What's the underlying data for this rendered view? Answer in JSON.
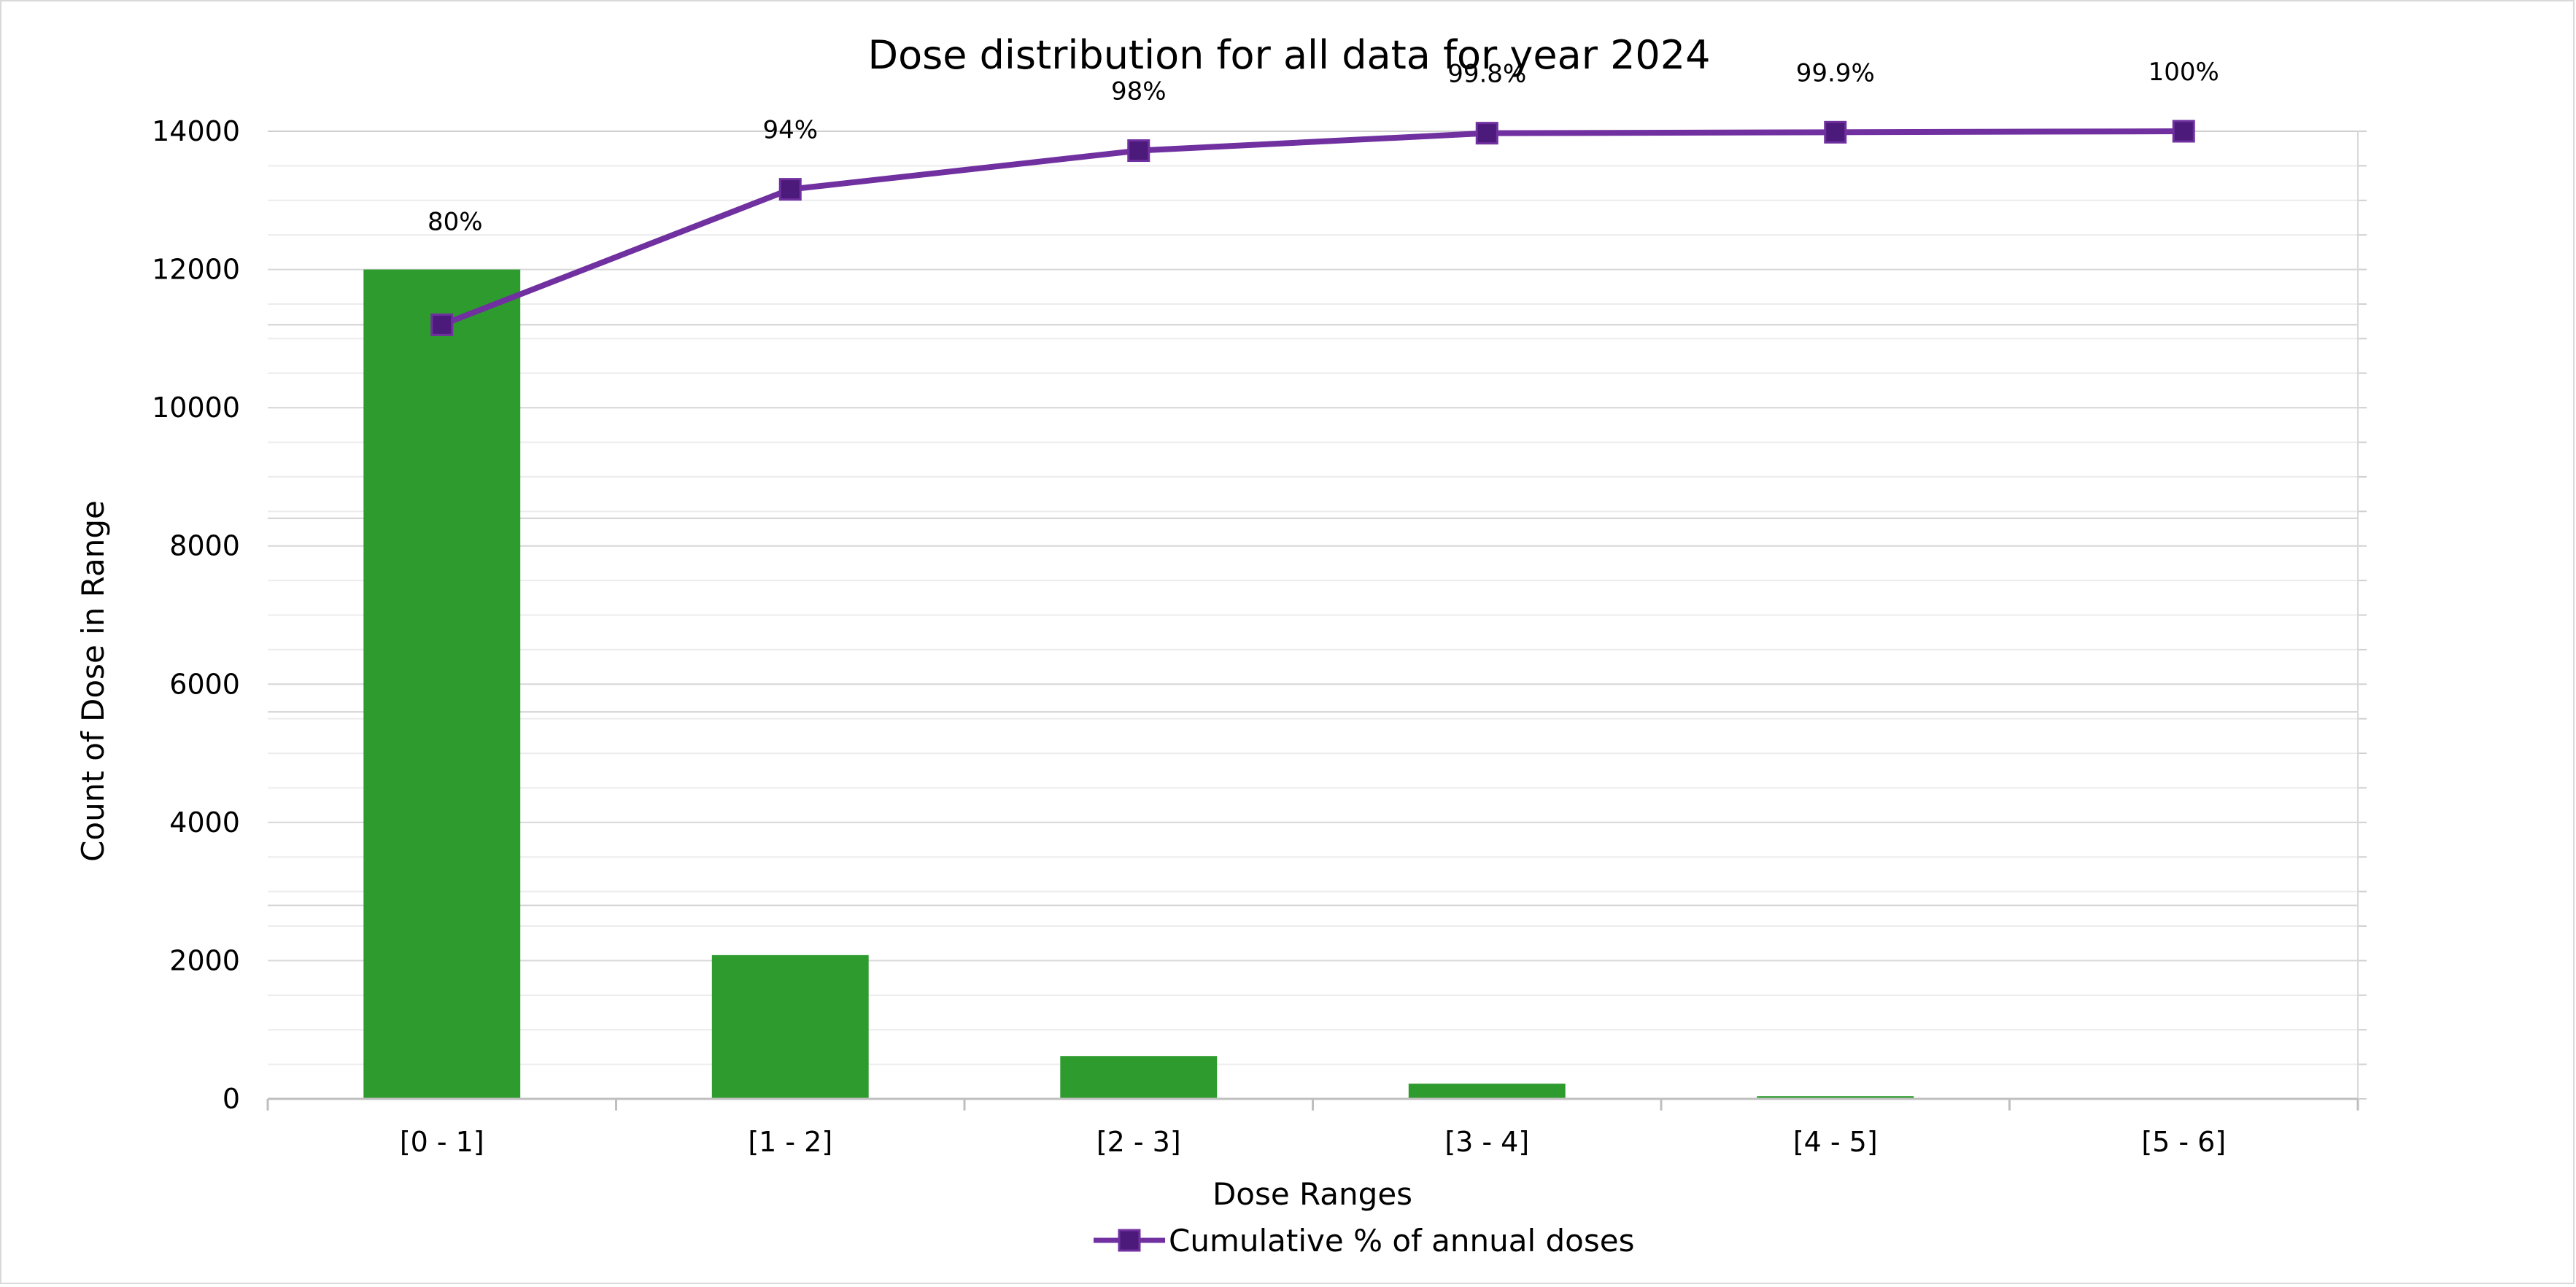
{
  "chart_data": {
    "type": "bar",
    "title": "Dose distribution for all data for year 2024",
    "xlabel": "Dose Ranges",
    "ylabel": "Count of Dose in Range",
    "categories": [
      "[0 - 1]",
      "[1 - 2]",
      "[2 - 3]",
      "[3 - 4]",
      "[4 - 5]",
      "[5 - 6]"
    ],
    "ylim": [
      0,
      14000
    ],
    "yticks": [
      0,
      2000,
      4000,
      6000,
      8000,
      10000,
      12000,
      14000
    ],
    "grid": true,
    "series": [
      {
        "name": "Count of Dose in Range",
        "type": "bar",
        "color": "#2e9b2e",
        "values": [
          12000,
          2080,
          620,
          220,
          40,
          12
        ]
      },
      {
        "name": "Cumulative % of annual doses",
        "type": "line",
        "color": "#7030a0",
        "marker_color": "#4b1a7a",
        "secondary_axis_range": [
          0,
          100
        ],
        "values": [
          80,
          94,
          98,
          99.8,
          99.9,
          100
        ],
        "labels": [
          "80%",
          "94%",
          "98%",
          "99.8%",
          "99.9%",
          "100%"
        ]
      }
    ],
    "legend": {
      "position": "bottom",
      "entries": [
        "Cumulative % of annual doses"
      ]
    }
  }
}
